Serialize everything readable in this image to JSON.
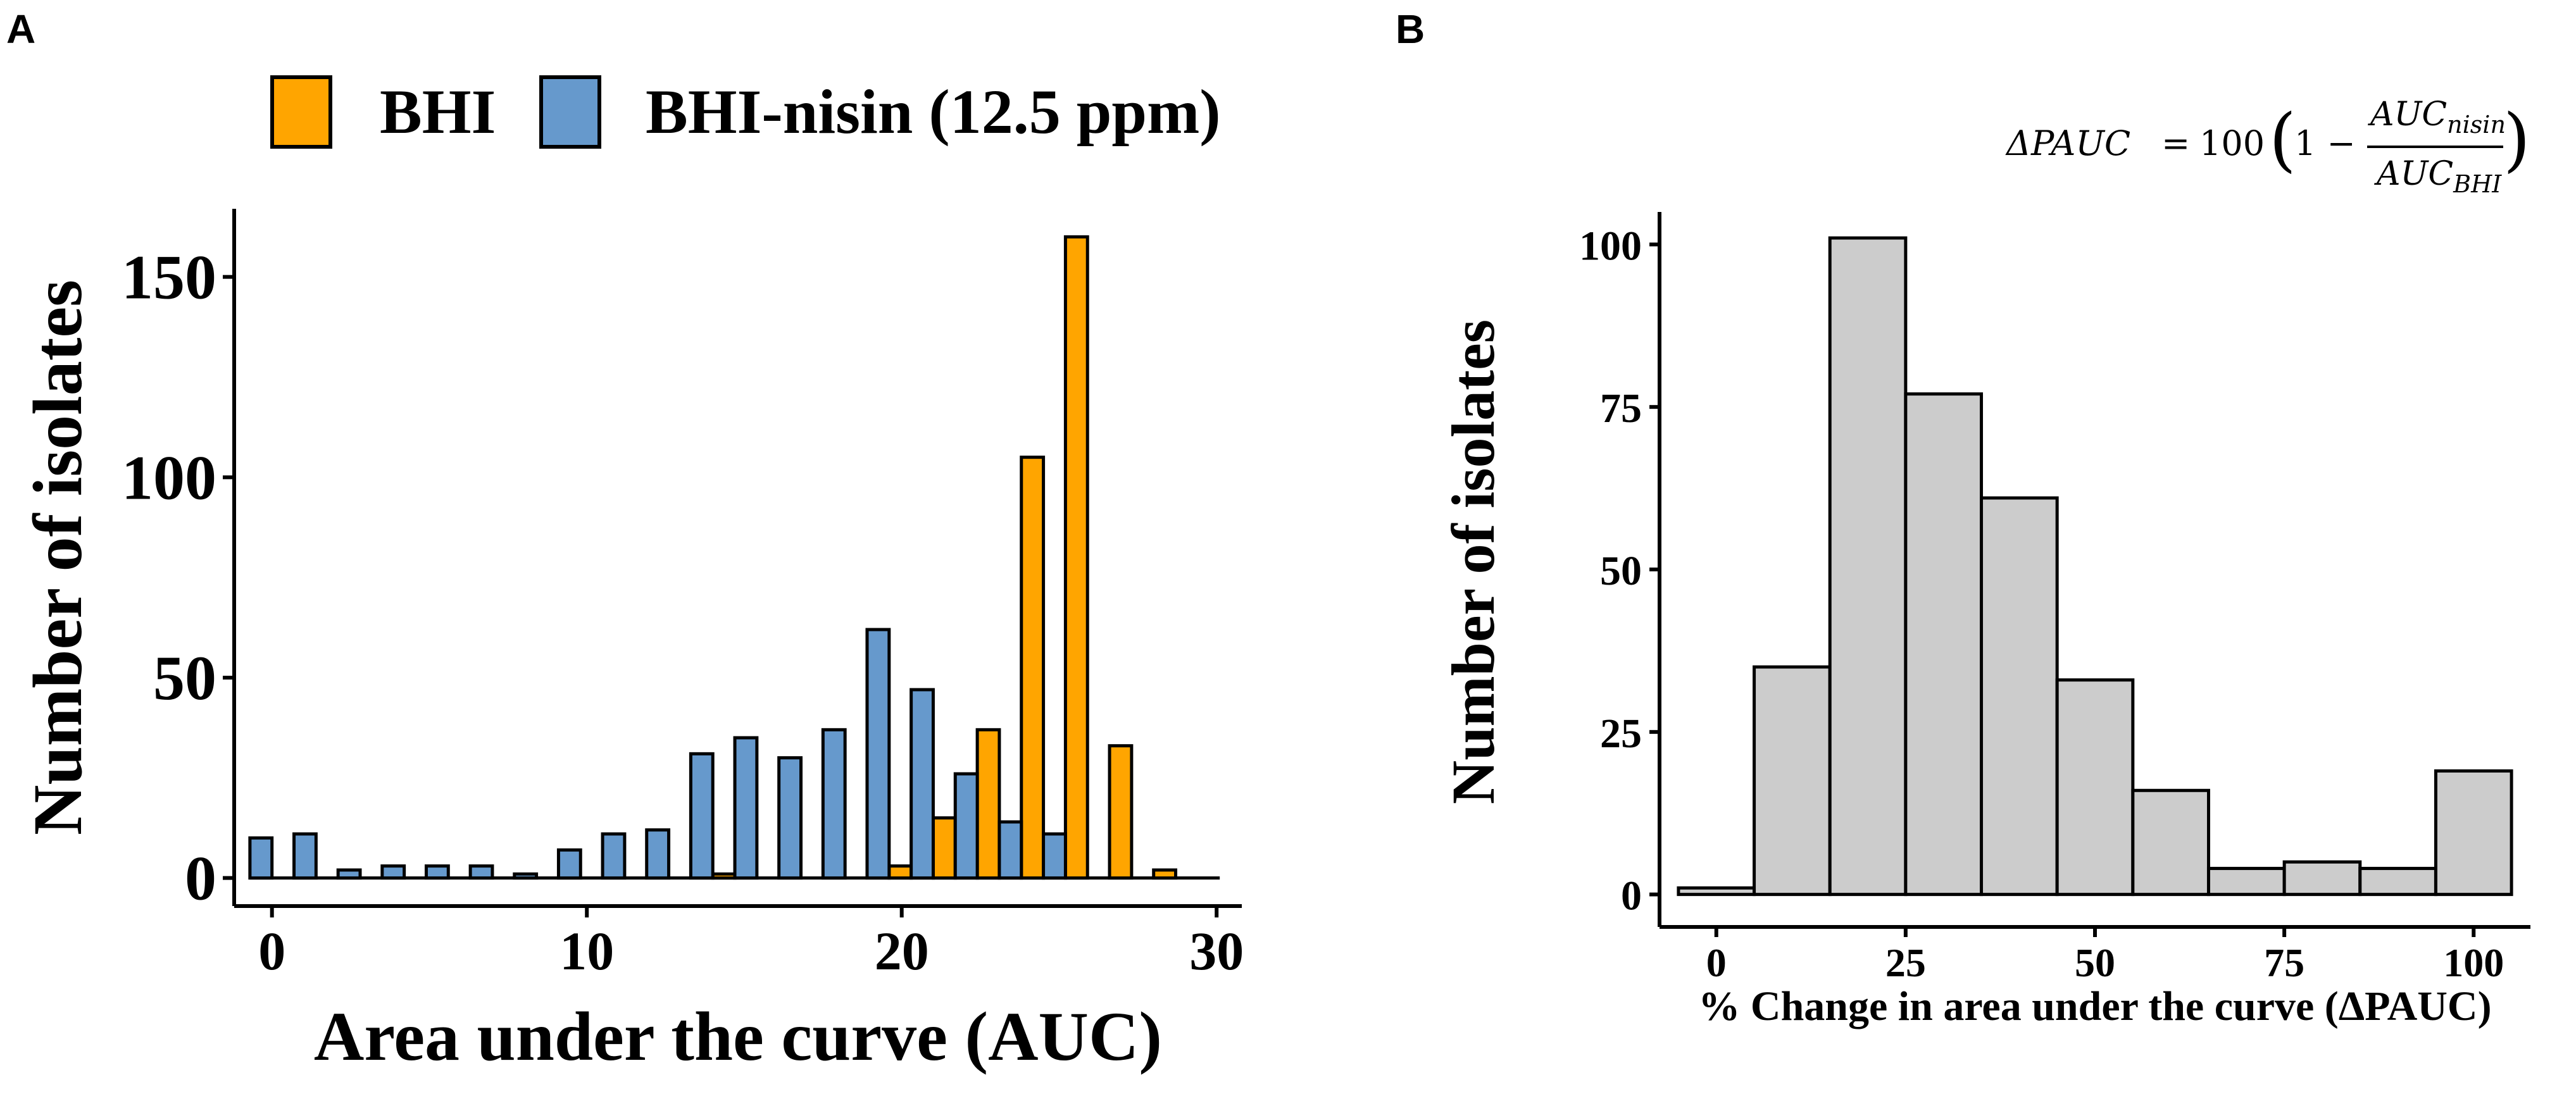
{
  "panels": {
    "a_label": "A",
    "b_label": "B"
  },
  "colors": {
    "bhi": "#FFA500",
    "bhi_nisin": "#6699CC",
    "hist_fill": "#CCCCCC",
    "stroke": "#000000"
  },
  "formula": {
    "lhs": "ΔPAUC",
    "equals": "=",
    "factor": "100",
    "open_paren": "(",
    "one_minus": "1 −",
    "num_main": "AUC",
    "num_sub": "nisin",
    "den_main": "AUC",
    "den_sub": "BHI",
    "close_paren": ")"
  },
  "chart_data": [
    {
      "type": "bar",
      "panel": "A",
      "title": "",
      "xlabel": "Area under the curve (AUC)",
      "ylabel": "Number of isolates",
      "xlim": [
        -1.2,
        30.8
      ],
      "ylim": [
        -7,
        167
      ],
      "xticks": [
        0,
        10,
        20,
        30
      ],
      "yticks": [
        0,
        50,
        100,
        150
      ],
      "bin_width": 1.4,
      "legend": {
        "placement": "top",
        "entries": [
          "BHI",
          "BHI-nisin (12.5 ppm)"
        ]
      },
      "series": [
        {
          "name": "BHI",
          "x": [
            0,
            1.4,
            2.8,
            4.2,
            5.6,
            7.0,
            8.4,
            9.8,
            11.2,
            12.6,
            14.0,
            15.4,
            16.8,
            18.2,
            19.6,
            21.0,
            22.4,
            23.8,
            25.2,
            26.6,
            28.0,
            29.4
          ],
          "values": [
            0,
            0,
            0,
            0,
            0,
            0,
            0,
            0,
            0,
            0,
            1,
            0,
            0,
            0,
            3,
            15,
            37,
            105,
            160,
            33,
            2,
            0
          ]
        },
        {
          "name": "BHI-nisin (12.5 ppm)",
          "x": [
            0,
            1.4,
            2.8,
            4.2,
            5.6,
            7.0,
            8.4,
            9.8,
            11.2,
            12.6,
            14.0,
            15.4,
            16.8,
            18.2,
            19.6,
            21.0,
            22.4,
            23.8,
            25.2,
            26.6,
            28.0,
            29.4
          ],
          "values": [
            10,
            11,
            2,
            3,
            3,
            3,
            1,
            7,
            11,
            12,
            31,
            35,
            30,
            37,
            62,
            47,
            26,
            14,
            11,
            0,
            0,
            0
          ]
        }
      ]
    },
    {
      "type": "bar",
      "panel": "B",
      "title": "",
      "xlabel": "% Change in area under the curve (ΔPAUC)",
      "ylabel": "Number of isolates",
      "xlim": [
        -7.5,
        107.5
      ],
      "ylim": [
        -5,
        105
      ],
      "xticks": [
        0,
        25,
        50,
        75,
        100
      ],
      "yticks": [
        0,
        25,
        50,
        75,
        100
      ],
      "bin_width": 10,
      "series": [
        {
          "name": "ΔPAUC",
          "x": [
            0,
            10,
            20,
            30,
            40,
            50,
            60,
            70,
            80,
            90,
            100
          ],
          "values": [
            1,
            35,
            101,
            77,
            61,
            33,
            16,
            4,
            5,
            4,
            19
          ]
        }
      ]
    }
  ]
}
